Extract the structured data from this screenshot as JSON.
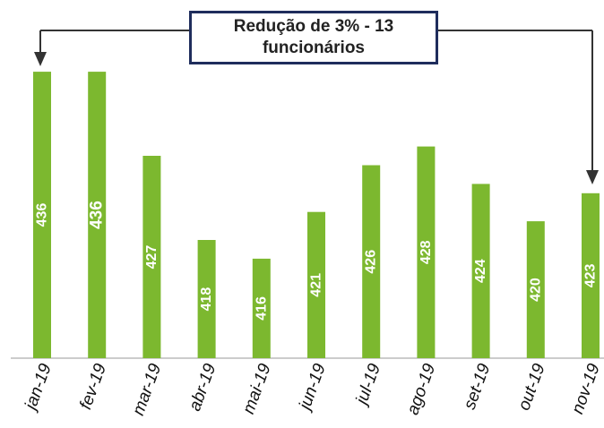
{
  "chart_data": {
    "type": "bar",
    "categories": [
      "jan-19",
      "fev-19",
      "mar-19",
      "abr-19",
      "mai-19",
      "jun-19",
      "jul-19",
      "ago-19",
      "set-19",
      "out-19",
      "nov-19"
    ],
    "values": [
      436,
      436,
      427,
      418,
      416,
      421,
      426,
      428,
      424,
      420,
      423
    ],
    "data_labels": [
      "436",
      "436",
      "427",
      "418",
      "416",
      "421",
      "426",
      "428",
      "424",
      "420",
      "423"
    ],
    "title": "",
    "xlabel": "",
    "ylabel": "",
    "grid": false,
    "legend": "none",
    "bar_color": "#7cb82f",
    "annotation": {
      "line1": "Redução de 3% - 13",
      "line2": "funcionários",
      "from_category": "jan-19",
      "to_category": "nov-19",
      "border_color": "#1f2d5c",
      "arrow_color": "#333333"
    }
  }
}
